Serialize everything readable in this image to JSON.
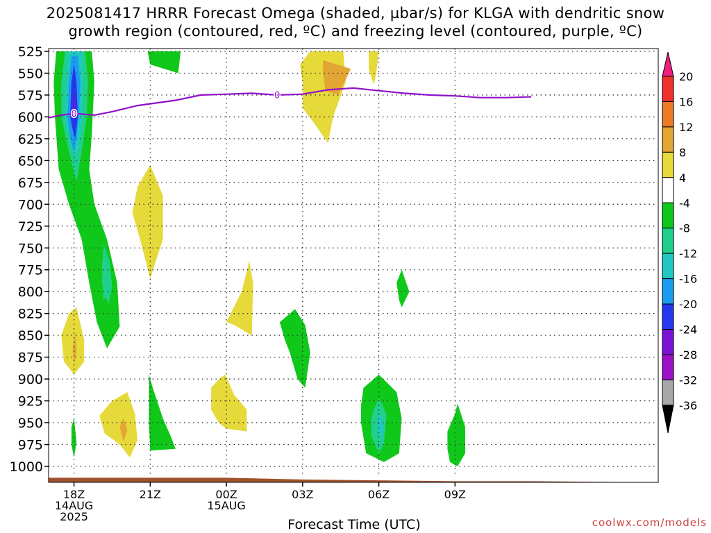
{
  "title": {
    "line1": "2025081417 HRRR Forecast Omega (shaded, µbar/s) for KLGA with dendritic snow",
    "line2": "growth region (contoured, red, ºC) and freezing level (contoured, purple, ºC)"
  },
  "credit": "coolwx.com/models",
  "chart_data": {
    "type": "heatmap",
    "title": "2025081417 HRRR Forecast Omega (shaded, µbar/s) for KLGA with dendritic snow growth region (contoured, red, ºC) and freezing level (contoured, purple, ºC)",
    "xlabel": "Forecast Time (UTC)",
    "ylabel": "",
    "x_unit": "hours since 2025-08-14 17Z",
    "xlim": [
      17,
      41
    ],
    "ylim": [
      1000,
      525
    ],
    "y_reversed": true,
    "y_ticks": [
      525,
      550,
      575,
      600,
      625,
      650,
      675,
      700,
      725,
      750,
      775,
      800,
      825,
      850,
      875,
      900,
      925,
      950,
      975,
      1000
    ],
    "x_ticks": [
      {
        "x": 18,
        "label": [
          "18Z",
          "14AUG",
          "2025"
        ]
      },
      {
        "x": 21,
        "label": [
          "21Z"
        ]
      },
      {
        "x": 24,
        "label": [
          "00Z",
          "15AUG"
        ]
      },
      {
        "x": 27,
        "label": [
          "03Z"
        ]
      },
      {
        "x": 30,
        "label": [
          "06Z"
        ]
      },
      {
        "x": 33,
        "label": [
          "09Z"
        ]
      }
    ],
    "grid": true,
    "colorbar": {
      "orientation": "vertical",
      "placement": "right",
      "labels": [
        "20",
        "16",
        "12",
        "8",
        "4",
        "-4",
        "-8",
        "-12",
        "-16",
        "-20",
        "-24",
        "-28",
        "-32",
        "-36"
      ],
      "bins": [
        {
          "lo": 20,
          "hi": 24,
          "color": "#f01d7e"
        },
        {
          "lo": 16,
          "hi": 20,
          "color": "#f0302c"
        },
        {
          "lo": 12,
          "hi": 16,
          "color": "#ec7a23"
        },
        {
          "lo": 8,
          "hi": 12,
          "color": "#e3a534"
        },
        {
          "lo": 4,
          "hi": 8,
          "color": "#e6d93a"
        },
        {
          "lo": -4,
          "hi": 4,
          "color": "#ffffff"
        },
        {
          "lo": -8,
          "hi": -4,
          "color": "#10c81a"
        },
        {
          "lo": -12,
          "hi": -8,
          "color": "#1fd08c"
        },
        {
          "lo": -16,
          "hi": -12,
          "color": "#20c8c4"
        },
        {
          "lo": -20,
          "hi": -16,
          "color": "#1a9cf0"
        },
        {
          "lo": -24,
          "hi": -20,
          "color": "#2438f0"
        },
        {
          "lo": -28,
          "hi": -24,
          "color": "#7a12d8"
        },
        {
          "lo": -32,
          "hi": -28,
          "color": "#9c10c8"
        },
        {
          "lo": -36,
          "hi": -32,
          "color": "#a8a8a8"
        },
        {
          "lo": -40,
          "hi": -36,
          "color": "#000000"
        }
      ]
    },
    "freezing_level": {
      "color": "#9010c8",
      "contour_label": "0",
      "points": [
        [
          17.0,
          601
        ],
        [
          17.5,
          598
        ],
        [
          18.0,
          596
        ],
        [
          18.8,
          598
        ],
        [
          19.5,
          594
        ],
        [
          20.5,
          587
        ],
        [
          22.0,
          581
        ],
        [
          23.0,
          575
        ],
        [
          24.0,
          574
        ],
        [
          25.0,
          573
        ],
        [
          26.0,
          575
        ],
        [
          27.0,
          574
        ],
        [
          28.0,
          569
        ],
        [
          29.0,
          567
        ],
        [
          30.0,
          570
        ],
        [
          31.0,
          573
        ],
        [
          32.0,
          575
        ],
        [
          33.0,
          576
        ],
        [
          34.0,
          578
        ],
        [
          35.0,
          578
        ],
        [
          36.0,
          577
        ]
      ]
    },
    "ground": {
      "color": "#a0522d",
      "top_points": [
        [
          17.0,
          1013
        ],
        [
          24.0,
          1013
        ],
        [
          27.0,
          1015
        ],
        [
          30.0,
          1016
        ],
        [
          33.0,
          1017
        ],
        [
          36.0,
          1017
        ]
      ]
    },
    "shaded_regions": [
      {
        "value": -4,
        "color": "#10c81a",
        "points": [
          [
            17.25,
            600
          ],
          [
            17.2,
            560
          ],
          [
            17.3,
            525
          ],
          [
            18.7,
            525
          ],
          [
            18.8,
            560
          ],
          [
            18.7,
            620
          ],
          [
            18.6,
            660
          ],
          [
            18.8,
            700
          ],
          [
            19.3,
            740
          ],
          [
            19.7,
            790
          ],
          [
            19.8,
            840
          ],
          [
            19.3,
            865
          ],
          [
            18.9,
            835
          ],
          [
            18.6,
            790
          ],
          [
            18.3,
            740
          ],
          [
            17.8,
            700
          ],
          [
            17.4,
            660
          ]
        ]
      },
      {
        "value": -8,
        "color": "#1fd08c",
        "points": [
          [
            17.5,
            600
          ],
          [
            17.5,
            560
          ],
          [
            17.65,
            525
          ],
          [
            18.45,
            525
          ],
          [
            18.55,
            560
          ],
          [
            18.5,
            600
          ],
          [
            18.3,
            640
          ],
          [
            18.1,
            675
          ],
          [
            17.8,
            640
          ]
        ]
      },
      {
        "value": -12,
        "color": "#20c8c4",
        "points": [
          [
            17.65,
            600
          ],
          [
            17.7,
            560
          ],
          [
            17.8,
            525
          ],
          [
            18.3,
            525
          ],
          [
            18.35,
            560
          ],
          [
            18.3,
            600
          ],
          [
            18.2,
            630
          ],
          [
            18.05,
            650
          ],
          [
            17.9,
            630
          ]
        ]
      },
      {
        "value": -16,
        "color": "#1a9cf0",
        "points": [
          [
            17.75,
            600
          ],
          [
            17.8,
            560
          ],
          [
            17.9,
            530
          ],
          [
            18.15,
            530
          ],
          [
            18.25,
            560
          ],
          [
            18.2,
            600
          ],
          [
            18.1,
            625
          ],
          [
            18.0,
            640
          ],
          [
            17.85,
            625
          ]
        ]
      },
      {
        "value": -20,
        "color": "#2438f0",
        "points": [
          [
            17.85,
            600
          ],
          [
            17.9,
            560
          ],
          [
            18.0,
            540
          ],
          [
            18.1,
            560
          ],
          [
            18.15,
            600
          ],
          [
            18.05,
            625
          ],
          [
            17.95,
            615
          ]
        ]
      },
      {
        "value": -24,
        "color": "#7a12d8",
        "points": [
          [
            17.95,
            590
          ],
          [
            18.0,
            562
          ],
          [
            18.05,
            590
          ],
          [
            18.0,
            605
          ]
        ]
      },
      {
        "value": -8,
        "color": "#1fd08c",
        "points": [
          [
            19.15,
            745
          ],
          [
            19.4,
            765
          ],
          [
            19.5,
            795
          ],
          [
            19.35,
            815
          ],
          [
            19.1,
            790
          ]
        ]
      },
      {
        "value": -4,
        "color": "#10c81a",
        "points": [
          [
            20.9,
            525
          ],
          [
            22.2,
            525
          ],
          [
            22.1,
            550
          ],
          [
            21.0,
            540
          ]
        ]
      },
      {
        "value": 4,
        "color": "#e6d93a",
        "points": [
          [
            21.0,
            655
          ],
          [
            21.5,
            690
          ],
          [
            21.5,
            740
          ],
          [
            21.0,
            785
          ],
          [
            20.6,
            740
          ],
          [
            20.3,
            710
          ],
          [
            20.5,
            680
          ]
        ]
      },
      {
        "value": -8,
        "color": "#1fd08c",
        "points": [
          [
            19.1,
            765
          ],
          [
            19.35,
            770
          ],
          [
            19.4,
            800
          ],
          [
            19.15,
            810
          ]
        ]
      },
      {
        "value": 4,
        "color": "#e6d93a",
        "points": [
          [
            27.3,
            525
          ],
          [
            28.6,
            525
          ],
          [
            28.7,
            560
          ],
          [
            28.2,
            600
          ],
          [
            28.0,
            630
          ],
          [
            27.4,
            605
          ],
          [
            27.0,
            590
          ],
          [
            27.0,
            560
          ],
          [
            26.9,
            540
          ]
        ]
      },
      {
        "value": 8,
        "color": "#e3a534",
        "points": [
          [
            27.8,
            535
          ],
          [
            28.9,
            545
          ],
          [
            28.4,
            575
          ],
          [
            27.9,
            570
          ],
          [
            27.8,
            550
          ]
        ]
      },
      {
        "value": 4,
        "color": "#e6d93a",
        "points": [
          [
            29.6,
            525
          ],
          [
            30.0,
            525
          ],
          [
            29.9,
            550
          ],
          [
            29.8,
            563
          ],
          [
            29.6,
            545
          ]
        ]
      },
      {
        "value": 4,
        "color": "#e6d93a",
        "points": [
          [
            17.5,
            850
          ],
          [
            17.8,
            825
          ],
          [
            18.1,
            818
          ],
          [
            18.4,
            855
          ],
          [
            18.4,
            880
          ],
          [
            18.0,
            895
          ],
          [
            17.6,
            880
          ]
        ]
      },
      {
        "value": 8,
        "color": "#e3a534",
        "points": [
          [
            17.95,
            865
          ],
          [
            18.05,
            848
          ],
          [
            18.1,
            870
          ],
          [
            18.0,
            884
          ]
        ]
      },
      {
        "value": 4,
        "color": "#e6d93a",
        "points": [
          [
            19.0,
            942
          ],
          [
            19.5,
            925
          ],
          [
            20.1,
            915
          ],
          [
            20.4,
            940
          ],
          [
            20.5,
            970
          ],
          [
            20.2,
            990
          ],
          [
            19.8,
            975
          ],
          [
            19.2,
            962
          ]
        ]
      },
      {
        "value": 8,
        "color": "#e3a534",
        "points": [
          [
            19.8,
            955
          ],
          [
            19.95,
            945
          ],
          [
            20.1,
            958
          ],
          [
            19.95,
            972
          ]
        ]
      },
      {
        "value": -4,
        "color": "#10c81a",
        "points": [
          [
            17.9,
            955
          ],
          [
            18.0,
            945
          ],
          [
            18.1,
            972
          ],
          [
            18.0,
            990
          ],
          [
            17.9,
            975
          ]
        ]
      },
      {
        "value": -4,
        "color": "#10c81a",
        "points": [
          [
            20.95,
            895
          ],
          [
            21.1,
            910
          ],
          [
            21.5,
            945
          ],
          [
            21.8,
            965
          ],
          [
            22.0,
            980
          ],
          [
            21.0,
            982
          ],
          [
            20.95,
            950
          ]
        ]
      },
      {
        "value": 4,
        "color": "#e6d93a",
        "points": [
          [
            23.7,
            900
          ],
          [
            23.95,
            895
          ],
          [
            24.3,
            918
          ],
          [
            24.8,
            935
          ],
          [
            24.8,
            960
          ],
          [
            24.0,
            957
          ],
          [
            23.7,
            950
          ],
          [
            23.4,
            935
          ],
          [
            23.4,
            910
          ]
        ]
      },
      {
        "value": 4,
        "color": "#e6d93a",
        "points": [
          [
            24.0,
            835
          ],
          [
            24.6,
            800
          ],
          [
            24.9,
            765
          ],
          [
            25.05,
            790
          ],
          [
            25.0,
            850
          ],
          [
            24.3,
            838
          ]
        ]
      },
      {
        "value": -4,
        "color": "#10c81a",
        "points": [
          [
            26.1,
            835
          ],
          [
            26.7,
            820
          ],
          [
            27.1,
            838
          ],
          [
            27.3,
            870
          ],
          [
            27.1,
            910
          ],
          [
            26.8,
            900
          ],
          [
            26.5,
            870
          ],
          [
            26.3,
            855
          ]
        ]
      },
      {
        "value": -4,
        "color": "#10c81a",
        "points": [
          [
            30.7,
            790
          ],
          [
            30.9,
            775
          ],
          [
            31.2,
            800
          ],
          [
            30.9,
            818
          ],
          [
            30.8,
            810
          ]
        ]
      },
      {
        "value": -4,
        "color": "#10c81a",
        "points": [
          [
            29.4,
            910
          ],
          [
            30.0,
            895
          ],
          [
            30.7,
            915
          ],
          [
            30.9,
            945
          ],
          [
            30.8,
            985
          ],
          [
            30.2,
            995
          ],
          [
            29.5,
            985
          ],
          [
            29.3,
            950
          ],
          [
            29.3,
            930
          ]
        ]
      },
      {
        "value": -8,
        "color": "#1fd08c",
        "points": [
          [
            29.8,
            935
          ],
          [
            30.0,
            922
          ],
          [
            30.3,
            940
          ],
          [
            30.2,
            975
          ],
          [
            30.0,
            985
          ],
          [
            29.7,
            965
          ],
          [
            29.7,
            945
          ]
        ]
      },
      {
        "value": -12,
        "color": "#20c8c4",
        "points": [
          [
            29.95,
            945
          ],
          [
            30.1,
            940
          ],
          [
            30.2,
            955
          ],
          [
            30.1,
            970
          ],
          [
            29.95,
            960
          ]
        ]
      },
      {
        "value": -4,
        "color": "#10c81a",
        "points": [
          [
            32.7,
            960
          ],
          [
            33.0,
            940
          ],
          [
            33.1,
            928
          ],
          [
            33.4,
            955
          ],
          [
            33.4,
            985
          ],
          [
            33.1,
            1000
          ],
          [
            32.8,
            995
          ],
          [
            32.7,
            980
          ]
        ]
      }
    ]
  }
}
